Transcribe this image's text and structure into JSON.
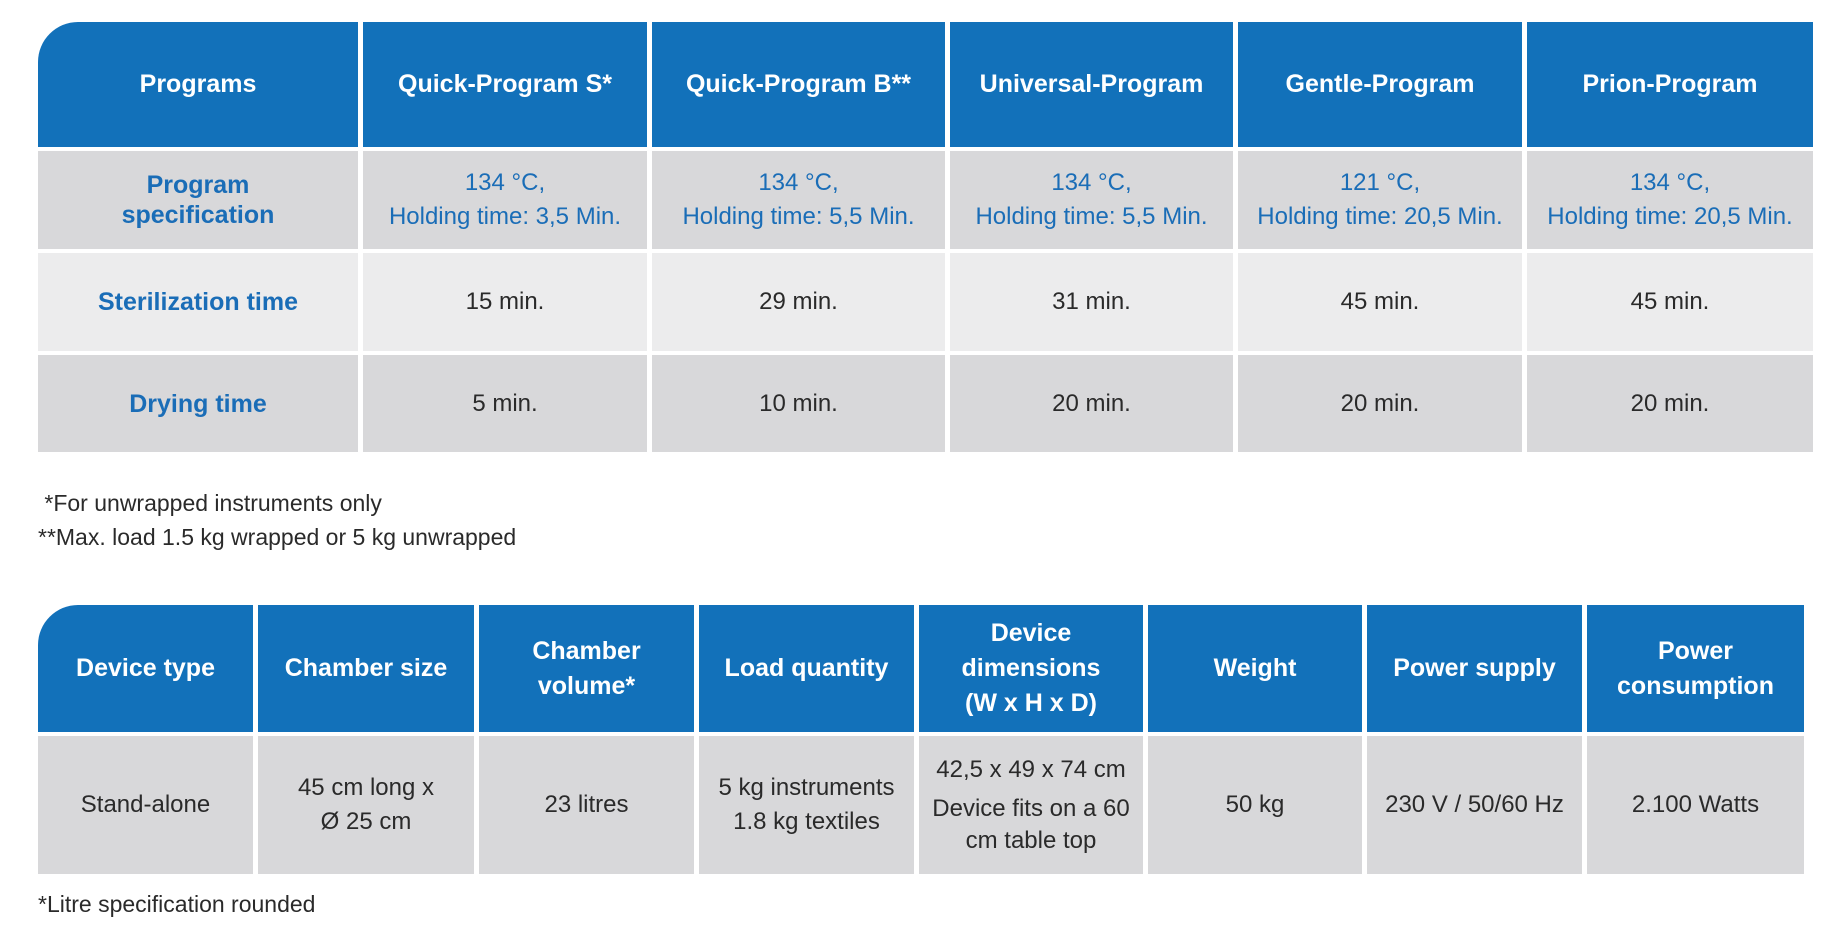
{
  "programs_table": {
    "headers": [
      "Programs",
      "Quick-Program S*",
      "Quick-Program B**",
      "Universal-Program",
      "Gentle-Program",
      "Prion-Program"
    ],
    "spec_label": "Program specification",
    "spec": [
      {
        "temp": "134 °C,",
        "holding": "Holding time: 3,5 Min."
      },
      {
        "temp": "134 °C,",
        "holding": "Holding time: 5,5 Min."
      },
      {
        "temp": "134 °C,",
        "holding": "Holding time: 5,5 Min."
      },
      {
        "temp": "121 °C,",
        "holding": "Holding time: 20,5 Min."
      },
      {
        "temp": "134 °C,",
        "holding": "Holding time: 20,5 Min."
      }
    ],
    "sterilization_label": "Sterilization time",
    "sterilization": [
      "15 min.",
      "29 min.",
      "31 min.",
      "45 min.",
      "45 min."
    ],
    "drying_label": "Drying time",
    "drying": [
      "5 min.",
      "10 min.",
      "20 min.",
      "20 min.",
      "20 min."
    ]
  },
  "footnotes": {
    "note1": " *For unwrapped instruments only",
    "note2": "**Max. load 1.5 kg wrapped or 5 kg unwrapped",
    "note3": "*Litre specification rounded"
  },
  "device_table": {
    "headers": [
      "Device type",
      "Chamber size",
      "Chamber volume*",
      "Load quantity",
      "Device dimensions (W x H x D)",
      "Weight",
      "Power supply",
      "Power consumption"
    ],
    "values": {
      "device_type": "Stand-alone",
      "chamber_size_1": "45 cm long x",
      "chamber_size_2": "Ø 25 cm",
      "chamber_volume": "23 litres",
      "load_1": "5 kg instruments",
      "load_2": "1.8 kg textiles",
      "dimensions_1": "42,5 x 49 x 74 cm",
      "dimensions_2": "Device fits on a 60 cm table top",
      "weight": "50 kg",
      "power_supply": "230 V / 50/60 Hz",
      "power_consumption": "2.100 Watts"
    }
  },
  "colors": {
    "header_blue": "#1271ba",
    "label_blue": "#1a6db7",
    "row_gray": "#d8d8da",
    "row_light": "#ececed"
  }
}
